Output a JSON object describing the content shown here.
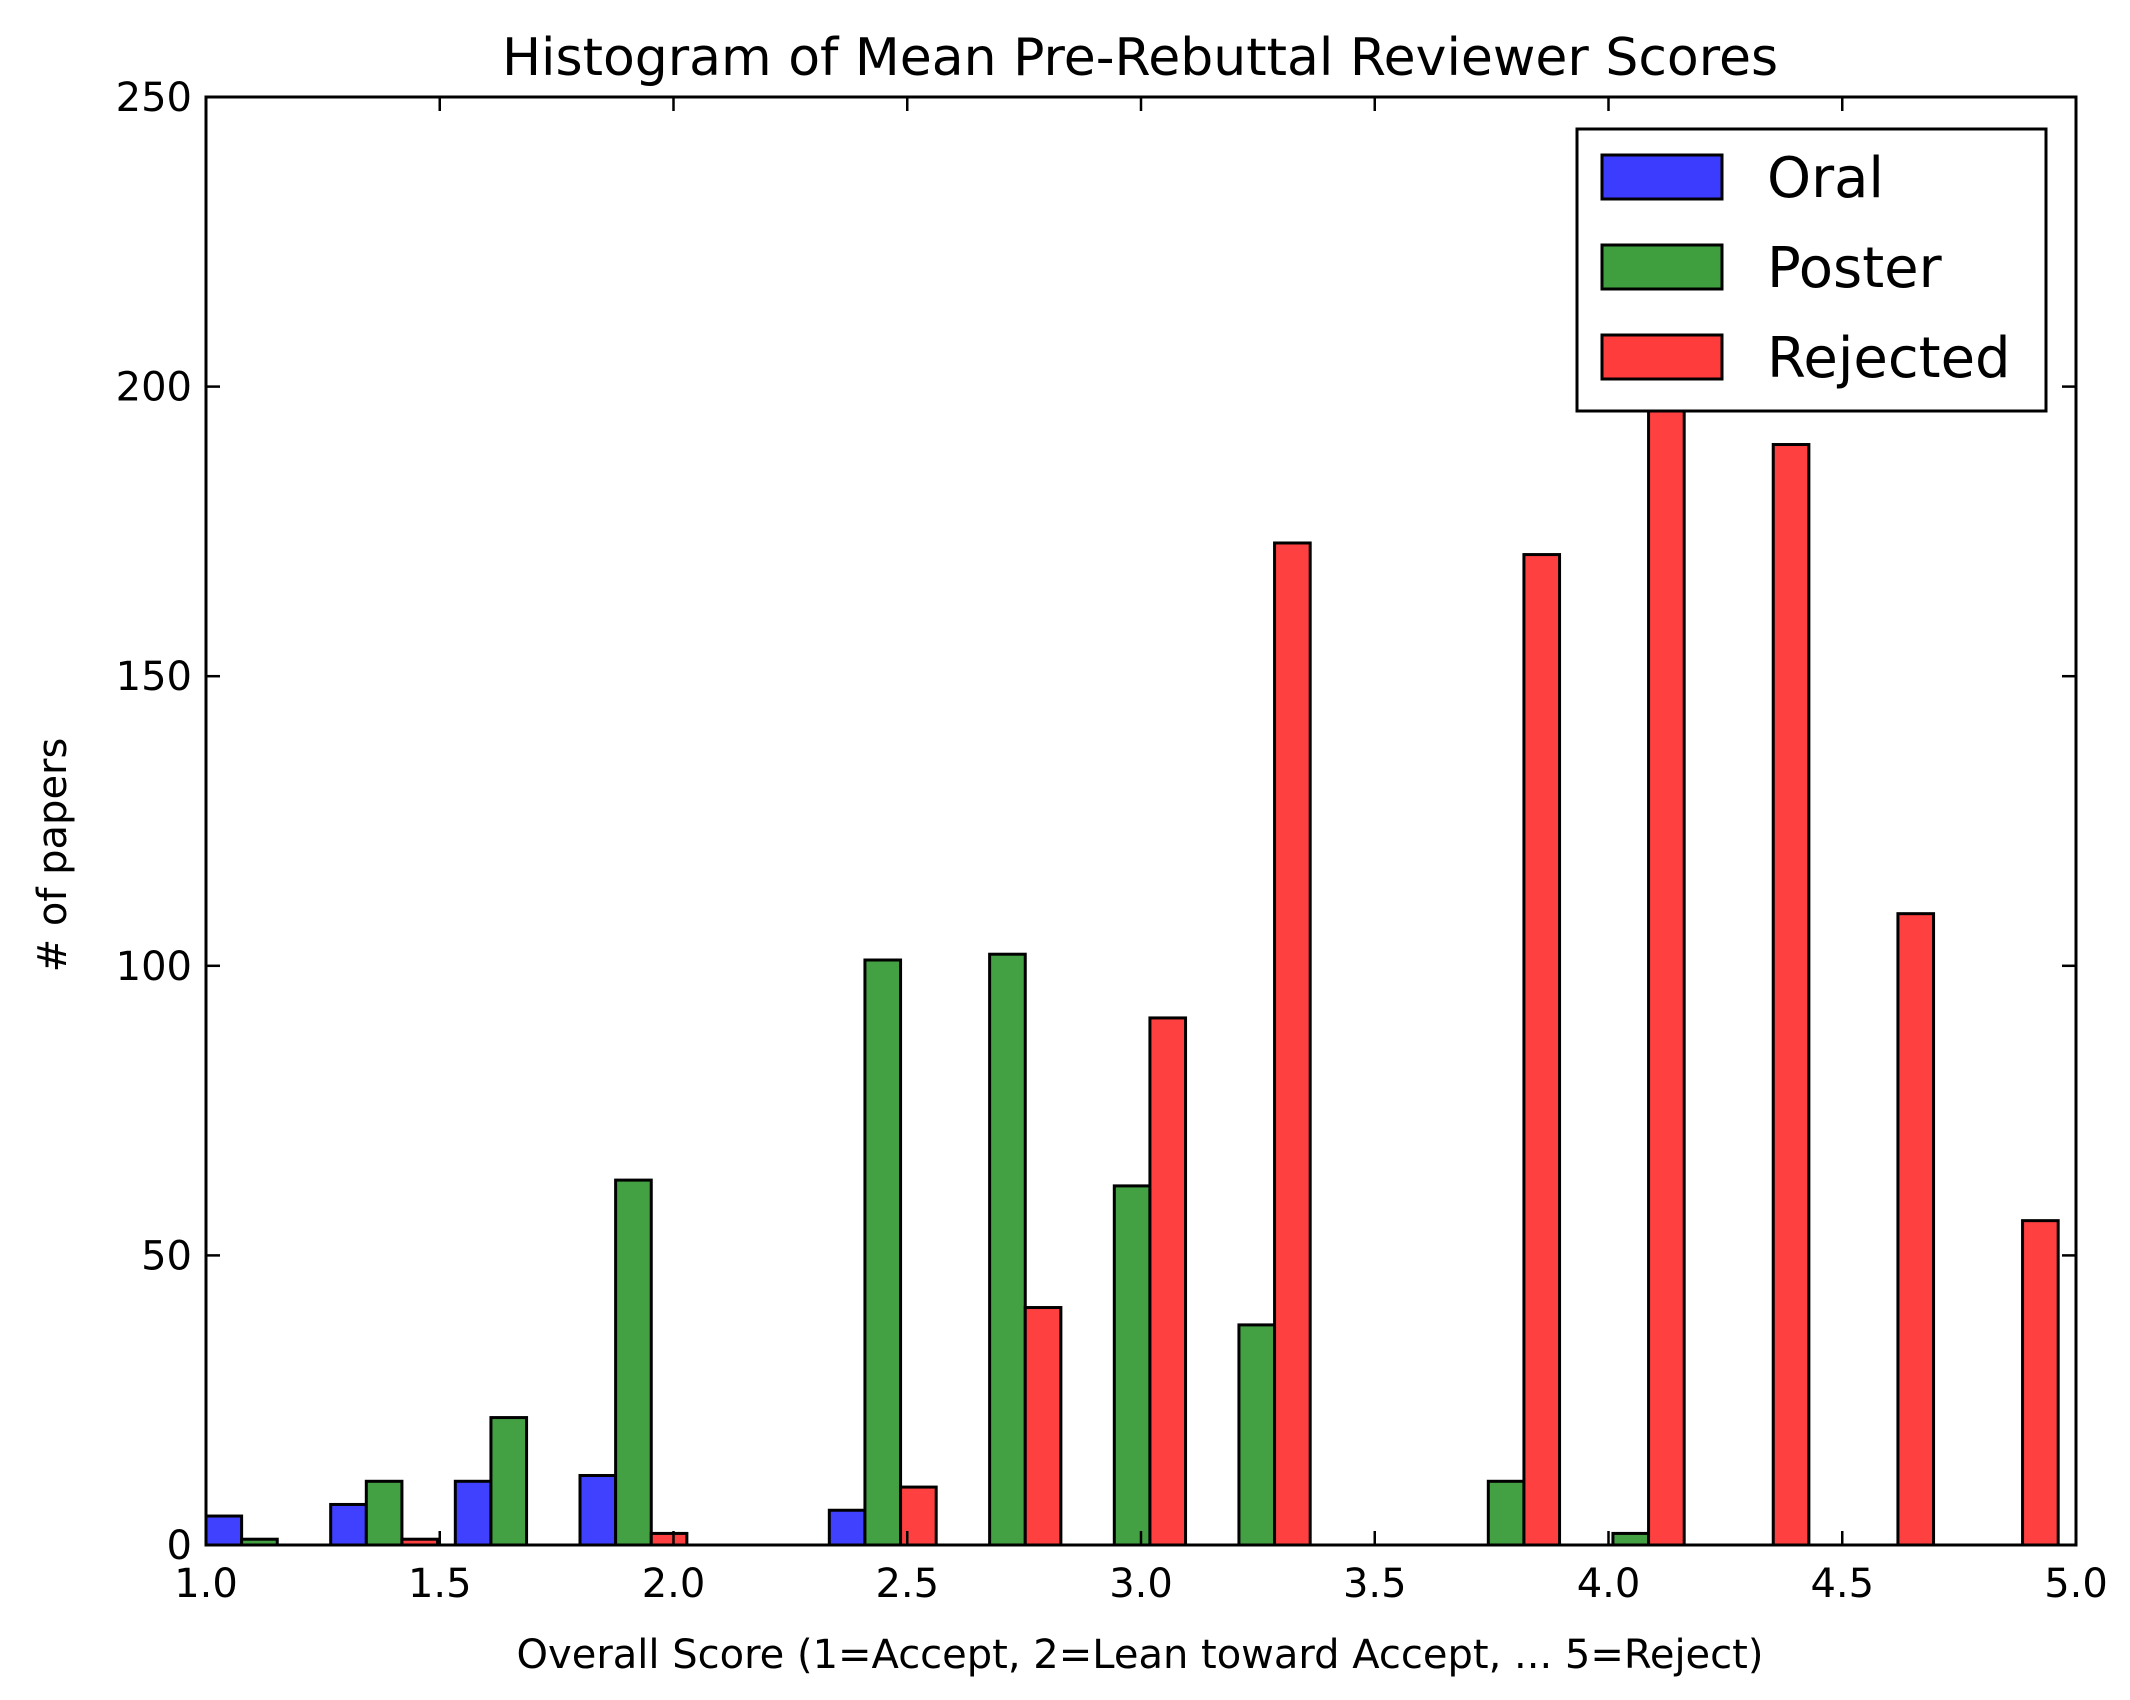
{
  "chart_data": {
    "type": "bar",
    "title": "Histogram of Mean Pre-Rebuttal Reviewer Scores",
    "xlabel": "Overall Score (1=Accept, 2=Lean toward Accept, ... 5=Reject)",
    "ylabel": "# of papers",
    "xlim": [
      1.0,
      5.0
    ],
    "ylim": [
      0,
      250
    ],
    "xticks": [
      "1.0",
      "1.5",
      "2.0",
      "2.5",
      "3.0",
      "3.5",
      "4.0",
      "4.5",
      "5.0"
    ],
    "yticks": [
      "0",
      "50",
      "100",
      "150",
      "200",
      "250"
    ],
    "grid": false,
    "legend_position": "top-right",
    "bin_width": 0.2667,
    "bin_starts": [
      1.0,
      1.2667,
      1.5333,
      1.8,
      2.0667,
      2.3333,
      2.6,
      2.8667,
      3.1333,
      3.4,
      3.6667,
      3.9333,
      4.2,
      4.4667,
      4.7333
    ],
    "series": [
      {
        "name": "Oral",
        "color": "#3c3cff",
        "values": [
          5,
          7,
          11,
          12,
          0,
          6,
          0,
          0,
          0,
          0,
          0,
          0,
          0,
          0,
          0
        ]
      },
      {
        "name": "Poster",
        "color": "#3f9f3f",
        "values": [
          1,
          11,
          22,
          63,
          0,
          101,
          102,
          62,
          38,
          0,
          11,
          2,
          0,
          0,
          0
        ]
      },
      {
        "name": "Rejected",
        "color": "#ff3c3c",
        "values": [
          0,
          1,
          0,
          2,
          0,
          10,
          41,
          91,
          173,
          0,
          171,
          197,
          190,
          109,
          56
        ]
      }
    ]
  }
}
